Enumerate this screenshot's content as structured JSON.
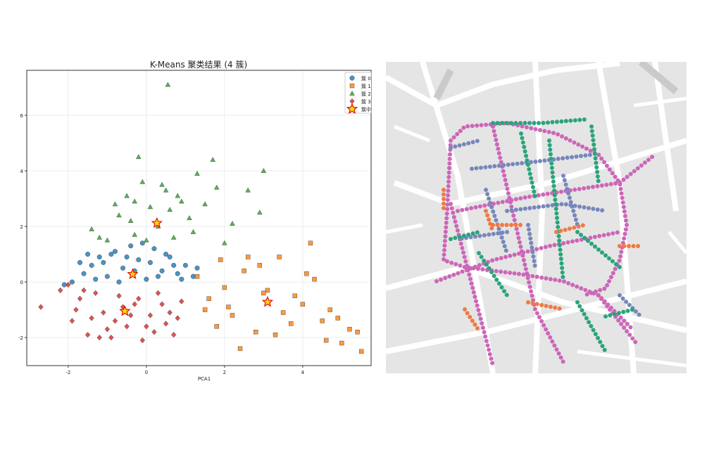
{
  "chart_data": {
    "type": "scatter",
    "title": "K-Means 聚类结果 (4 簇)",
    "x_label": "PCA1",
    "xlim": [
      -3.06,
      5.75
    ],
    "ylim": [
      -3.01,
      7.62
    ],
    "xticks": [
      -2,
      0,
      2,
      4
    ],
    "yticks": [
      -2,
      0,
      2,
      4,
      6
    ],
    "grid": true,
    "legend": "upper right",
    "series": [
      {
        "name": "簇 0",
        "color": "#1f77b4",
        "marker": "o",
        "x": [
          -1.9,
          -1.6,
          -1.4,
          -1.2,
          -1.0,
          -0.8,
          -0.6,
          -0.4,
          -0.2,
          0.0,
          0.2,
          0.4,
          0.6,
          0.8,
          1.0,
          1.2,
          -1.5,
          -1.1,
          -0.7,
          -0.3,
          0.1,
          0.5,
          0.9,
          -1.3,
          -0.9,
          -0.5,
          0.3,
          0.7,
          -0.1,
          -1.7,
          1.3,
          -2.1
        ],
        "y": [
          0.0,
          0.3,
          0.6,
          0.9,
          0.2,
          1.1,
          0.5,
          1.3,
          0.8,
          0.1,
          1.2,
          0.4,
          0.9,
          0.3,
          0.6,
          0.2,
          1.0,
          0.7,
          0.0,
          0.4,
          0.7,
          1.0,
          0.1,
          0.1,
          1.0,
          0.9,
          0.2,
          0.6,
          1.4,
          0.7,
          0.5,
          -0.1
        ]
      },
      {
        "name": "簇 1",
        "color": "#ff7f0e",
        "marker": "s",
        "x": [
          1.3,
          1.6,
          1.9,
          2.2,
          2.5,
          2.8,
          3.1,
          3.4,
          3.7,
          4.0,
          4.3,
          4.6,
          4.9,
          5.2,
          5.5,
          1.5,
          2.0,
          2.4,
          2.9,
          3.3,
          3.8,
          4.2,
          4.7,
          5.0,
          1.8,
          2.6,
          3.5,
          4.1,
          4.5,
          5.4,
          2.1,
          3.0
        ],
        "y": [
          0.2,
          -0.6,
          0.8,
          -1.2,
          0.4,
          -1.8,
          -0.3,
          0.9,
          -1.5,
          -0.8,
          0.1,
          -2.1,
          -1.3,
          -1.7,
          -2.5,
          -1.0,
          -0.2,
          -2.4,
          0.6,
          -1.9,
          -0.5,
          1.4,
          -1.0,
          -2.2,
          -1.6,
          0.9,
          -1.1,
          0.3,
          -1.4,
          -1.8,
          -0.9,
          -0.4
        ]
      },
      {
        "name": "簇 2",
        "color": "#2ca02c",
        "marker": "^",
        "x": [
          -1.4,
          -1.0,
          -0.7,
          -0.5,
          -0.3,
          -0.1,
          0.1,
          0.3,
          0.5,
          0.7,
          0.9,
          1.1,
          1.3,
          1.5,
          1.7,
          2.0,
          2.2,
          2.9,
          3.0,
          -0.8,
          -0.2,
          0.4,
          0.8,
          1.2,
          -0.4,
          0.0,
          0.6,
          -1.2,
          1.8,
          0.55,
          -0.3,
          2.6
        ],
        "y": [
          1.9,
          1.5,
          2.4,
          3.1,
          1.7,
          3.6,
          2.7,
          2.0,
          3.3,
          1.6,
          2.9,
          2.3,
          3.9,
          2.8,
          4.4,
          1.4,
          2.1,
          2.5,
          4.0,
          2.8,
          4.5,
          3.5,
          3.1,
          1.8,
          2.2,
          1.5,
          2.6,
          1.6,
          3.4,
          7.1,
          2.9,
          3.3
        ]
      },
      {
        "name": "簇 3",
        "color": "#d62728",
        "marker": "D",
        "x": [
          -2.7,
          -2.2,
          -1.9,
          -1.7,
          -1.5,
          -1.3,
          -1.1,
          -0.9,
          -0.7,
          -0.5,
          -0.3,
          -0.1,
          0.1,
          0.3,
          0.5,
          0.7,
          0.9,
          -1.8,
          -1.4,
          -1.0,
          -0.6,
          -0.2,
          0.2,
          0.6,
          -1.6,
          -1.2,
          -0.8,
          -0.4,
          0.0,
          0.4,
          0.8,
          -2.0
        ],
        "y": [
          -0.9,
          -0.3,
          -1.4,
          -0.6,
          -1.9,
          -0.4,
          -1.1,
          -2.0,
          -0.5,
          -1.6,
          -0.8,
          -2.1,
          -1.2,
          -0.4,
          -1.5,
          -1.9,
          -0.7,
          -1.0,
          -1.3,
          -1.7,
          -0.9,
          -0.6,
          -1.8,
          -1.1,
          -0.3,
          -2.0,
          -1.4,
          -1.2,
          -1.6,
          -0.8,
          -1.3,
          -0.1
        ]
      },
      {
        "name": "簇中心",
        "color": "#ffd700",
        "edge": "#e01010",
        "marker": "*",
        "x": [
          -0.35,
          3.1,
          0.27,
          -0.55
        ],
        "y": [
          0.28,
          -0.72,
          2.12,
          -1.05
        ]
      }
    ]
  }
}
